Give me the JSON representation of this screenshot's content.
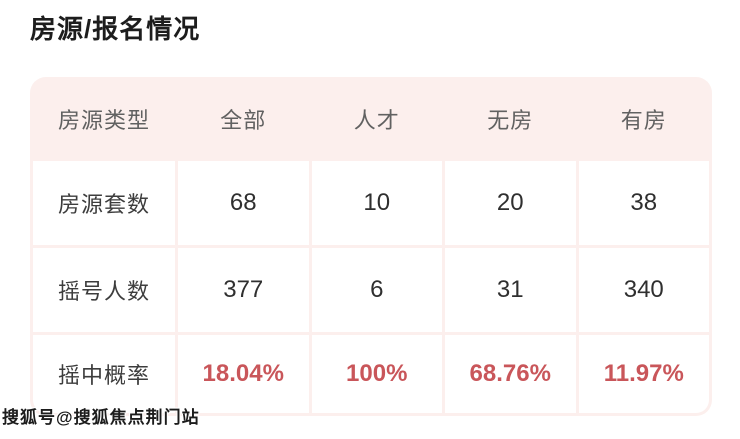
{
  "page_title": "房源/报名情况",
  "table": {
    "columns": [
      "房源类型",
      "全部",
      "人才",
      "无房",
      "有房"
    ],
    "rows": [
      {
        "label": "房源套数",
        "values": [
          "68",
          "10",
          "20",
          "38"
        ]
      },
      {
        "label": "摇号人数",
        "values": [
          "377",
          "6",
          "31",
          "340"
        ]
      },
      {
        "label": "摇中概率",
        "values": [
          "18.04%",
          "100%",
          "68.76%",
          "11.97%"
        ]
      }
    ]
  },
  "watermark": "搜狐号@搜狐焦点荆门站",
  "colors": {
    "accent_red": "#c9565a",
    "table_bg_pink": "#fcefed",
    "title_text": "#1d1d1d",
    "header_text": "#616161",
    "cell_text": "#2f2f2f"
  },
  "chart_data": {
    "type": "table",
    "title": "房源/报名情况",
    "columns": [
      "房源类型",
      "全部",
      "人才",
      "无房",
      "有房"
    ],
    "rows": [
      [
        "房源套数",
        68,
        10,
        20,
        38
      ],
      [
        "摇号人数",
        377,
        6,
        31,
        340
      ],
      [
        "摇中概率",
        "18.04%",
        "100%",
        "68.76%",
        "11.97%"
      ]
    ],
    "notes": "摇中概率 row values rendered in red bold; header row on light pink background"
  }
}
